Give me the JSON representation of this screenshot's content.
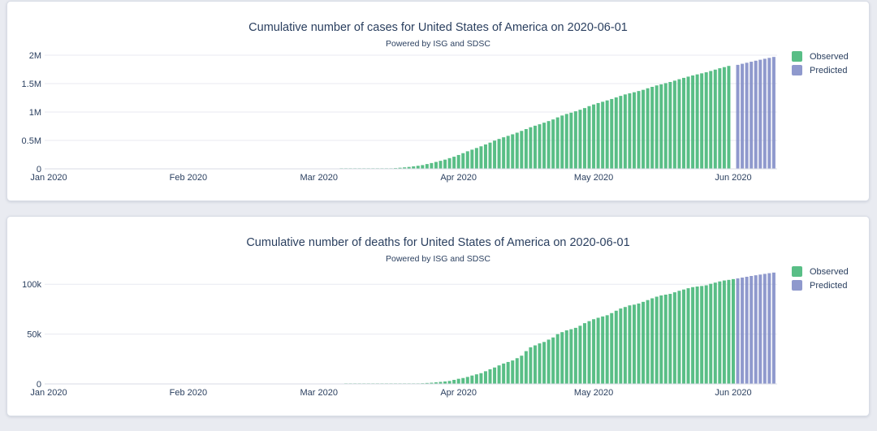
{
  "page": {
    "background": "#e9ebf1",
    "card_background": "#ffffff"
  },
  "colors": {
    "observed": "#3cb371",
    "predicted": "#7b87c4",
    "bar_opacity": 0.85,
    "grid": "#e8eaf0",
    "zeroline": "#d8dbe4",
    "text": "#2a3f5f"
  },
  "charts": [
    {
      "chart_data": {
        "type": "bar",
        "title": "Cumulative number of cases for United States of America on 2020-06-01",
        "subtitle": "Powered by ISG and SDSC",
        "xlabel": "",
        "ylabel": "",
        "grid": true,
        "legend_position": "right",
        "x_axis_start": "2020-01-01",
        "x_ticks": [
          {
            "label": "Jan 2020",
            "day": 0
          },
          {
            "label": "Feb 2020",
            "day": 31
          },
          {
            "label": "Mar 2020",
            "day": 60
          },
          {
            "label": "Apr 2020",
            "day": 91
          },
          {
            "label": "May 2020",
            "day": 121
          },
          {
            "label": "Jun 2020",
            "day": 152
          }
        ],
        "y_axis": {
          "range": [
            0,
            2000000
          ],
          "ticks": [
            {
              "label": "0",
              "value": 0
            },
            {
              "label": "0.5M",
              "value": 500000
            },
            {
              "label": "1M",
              "value": 1000000
            },
            {
              "label": "1.5M",
              "value": 1500000
            },
            {
              "label": "2M",
              "value": 2000000
            }
          ]
        },
        "series": [
          {
            "name": "Observed",
            "color": "#3cb371",
            "opacity": 0.85,
            "start_date": "2020-01-22",
            "start_day": 21,
            "values": [
              1,
              1,
              2,
              2,
              5,
              5,
              5,
              5,
              5,
              7,
              8,
              8,
              11,
              11,
              11,
              11,
              11,
              11,
              11,
              11,
              12,
              12,
              13,
              13,
              13,
              13,
              13,
              13,
              13,
              15,
              15,
              15,
              51,
              51,
              57,
              58,
              60,
              68,
              74,
              98,
              118,
              149,
              217,
              262,
              402,
              518,
              583,
              959,
              1281,
              1663,
              2179,
              2727,
              3499,
              4632,
              6421,
              7783,
              13677,
              19100,
              25489,
              33276,
              43847,
              53740,
              65778,
              83836,
              101657,
              121478,
              140886,
              161807,
              188172,
              213372,
              243453,
              275586,
              308850,
              337072,
              366667,
              396223,
              429052,
              461437,
              496535,
              526396,
              555313,
              580619,
              607670,
              636350,
              667592,
              699706,
              732197,
              759086,
              784326,
              811865,
              840351,
              869170,
              905358,
              938154,
              965785,
              988197,
              1012582,
              1039909,
              1069424,
              1103461,
              1132539,
              1158040,
              1180375,
              1204351,
              1229331,
              1257023,
              1283929,
              1309541,
              1329260,
              1347881,
              1369376,
              1390406,
              1417774,
              1442824,
              1467820,
              1486757,
              1508308,
              1528568,
              1551853,
              1577287,
              1600937,
              1622670,
              1643246,
              1662302,
              1680913,
              1699176,
              1721926,
              1746019,
              1770384,
              1790191,
              1811277
            ]
          },
          {
            "name": "Predicted",
            "color": "#7b87c4",
            "opacity": 0.85,
            "start_date": "2020-06-02",
            "start_day": 153,
            "values": [
              1830000,
              1849000,
              1867000,
              1885000,
              1903000,
              1920000,
              1937000,
              1953000,
              1969000
            ]
          }
        ]
      }
    },
    {
      "chart_data": {
        "type": "bar",
        "title": "Cumulative number of deaths for United States of America on 2020-06-01",
        "subtitle": "Powered by ISG and SDSC",
        "xlabel": "",
        "ylabel": "",
        "grid": true,
        "legend_position": "right",
        "x_axis_start": "2020-01-01",
        "x_ticks": [
          {
            "label": "Jan 2020",
            "day": 0
          },
          {
            "label": "Feb 2020",
            "day": 31
          },
          {
            "label": "Mar 2020",
            "day": 60
          },
          {
            "label": "Apr 2020",
            "day": 91
          },
          {
            "label": "May 2020",
            "day": 121
          },
          {
            "label": "Jun 2020",
            "day": 152
          }
        ],
        "y_axis": {
          "range": [
            0,
            114000
          ],
          "ticks": [
            {
              "label": "0",
              "value": 0
            },
            {
              "label": "50k",
              "value": 50000
            },
            {
              "label": "100k",
              "value": 100000
            }
          ]
        },
        "series": [
          {
            "name": "Observed",
            "color": "#3cb371",
            "opacity": 0.85,
            "start_date": "2020-02-29",
            "start_day": 59,
            "values": [
              1,
              1,
              6,
              7,
              11,
              12,
              14,
              17,
              21,
              22,
              28,
              36,
              40,
              47,
              54,
              63,
              85,
              108,
              118,
              200,
              244,
              307,
              417,
              557,
              706,
              942,
              1209,
              1581,
              2026,
              2467,
              2978,
              4058,
              5151,
              5914,
              7017,
              8407,
              9619,
              10783,
              12722,
              14695,
              16478,
              18586,
              20463,
              22020,
              23529,
              25832,
              28326,
              32916,
              36773,
              38664,
              40661,
              42094,
              44444,
              46622,
              49954,
              51949,
              53755,
              54881,
              56259,
              58355,
              60967,
              62996,
              64943,
              66369,
              67682,
              68922,
              71064,
              73455,
              75662,
              77180,
              78795,
              79526,
              80682,
              82356,
              84119,
              85898,
              87530,
              88754,
              89562,
              90347,
              91921,
              93439,
              94702,
              96007,
              97087,
              97720,
              98223,
              98929,
              100442,
              101621,
              102836,
              103781,
              104383,
              105147
            ]
          },
          {
            "name": "Predicted",
            "color": "#7b87c4",
            "opacity": 0.85,
            "start_date": "2020-06-02",
            "start_day": 153,
            "values": [
              105900,
              106700,
              107500,
              108300,
              109000,
              109700,
              110400,
              111100,
              111700
            ]
          }
        ]
      }
    }
  ]
}
